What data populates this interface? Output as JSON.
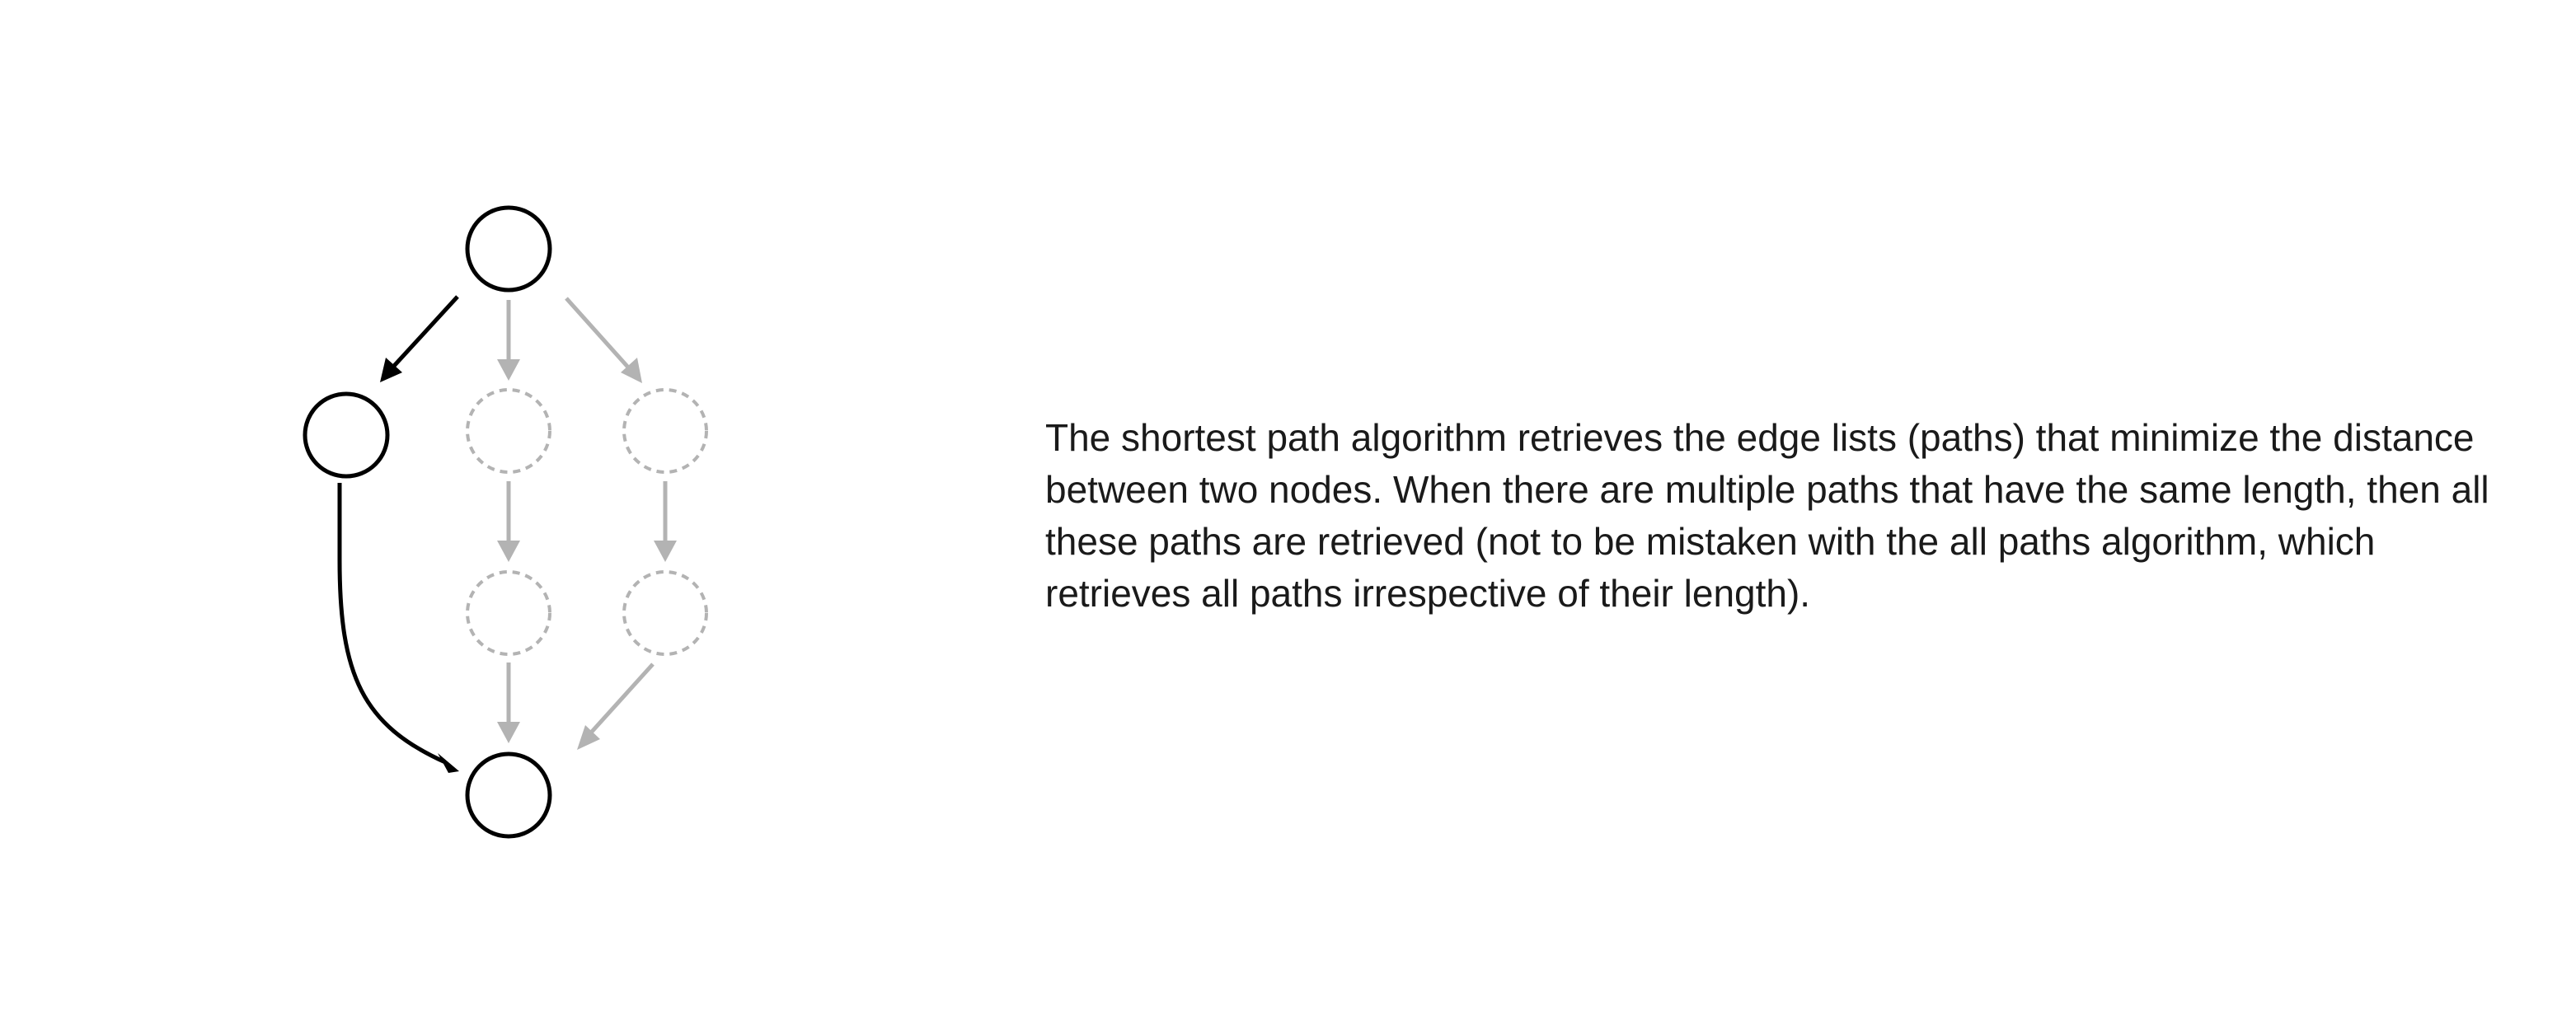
{
  "diagram": {
    "nodes": [
      {
        "id": "top",
        "state": "active"
      },
      {
        "id": "left",
        "state": "active"
      },
      {
        "id": "mid-1",
        "state": "inactive"
      },
      {
        "id": "mid-2",
        "state": "inactive"
      },
      {
        "id": "right-1",
        "state": "inactive"
      },
      {
        "id": "right-2",
        "state": "inactive"
      },
      {
        "id": "bottom",
        "state": "active"
      }
    ],
    "edges": [
      {
        "from": "top",
        "to": "left",
        "state": "active"
      },
      {
        "from": "left",
        "to": "bottom",
        "state": "active"
      },
      {
        "from": "top",
        "to": "mid-1",
        "state": "inactive"
      },
      {
        "from": "mid-1",
        "to": "mid-2",
        "state": "inactive"
      },
      {
        "from": "mid-2",
        "to": "bottom",
        "state": "inactive"
      },
      {
        "from": "top",
        "to": "right-1",
        "state": "inactive"
      },
      {
        "from": "right-1",
        "to": "right-2",
        "state": "inactive"
      },
      {
        "from": "right-2",
        "to": "bottom",
        "state": "inactive"
      }
    ],
    "colors": {
      "active": "#000000",
      "inactive": "#b3b3b3"
    }
  },
  "description": "The shortest path algorithm retrieves the edge lists (paths) that minimize the distance between two nodes. When there are multiple paths that have the same length, then all these paths are retrieved (not to be mistaken with the all paths algorithm, which retrieves all paths irrespective of their length)."
}
